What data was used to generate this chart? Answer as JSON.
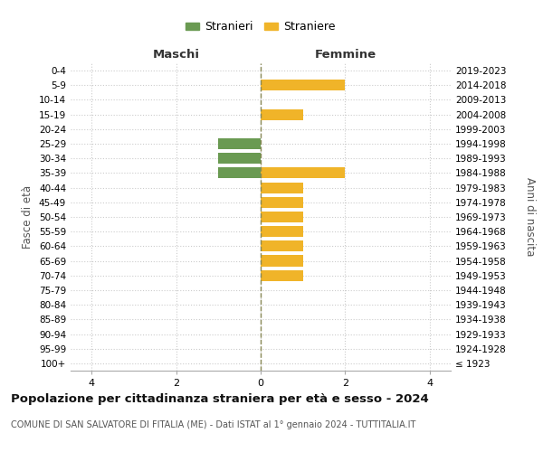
{
  "age_groups": [
    "100+",
    "95-99",
    "90-94",
    "85-89",
    "80-84",
    "75-79",
    "70-74",
    "65-69",
    "60-64",
    "55-59",
    "50-54",
    "45-49",
    "40-44",
    "35-39",
    "30-34",
    "25-29",
    "20-24",
    "15-19",
    "10-14",
    "5-9",
    "0-4"
  ],
  "birth_years": [
    "≤ 1923",
    "1924-1928",
    "1929-1933",
    "1934-1938",
    "1939-1943",
    "1944-1948",
    "1949-1953",
    "1954-1958",
    "1959-1963",
    "1964-1968",
    "1969-1973",
    "1974-1978",
    "1979-1983",
    "1984-1988",
    "1989-1993",
    "1994-1998",
    "1999-2003",
    "2004-2008",
    "2009-2013",
    "2014-2018",
    "2019-2023"
  ],
  "males": [
    0,
    0,
    0,
    0,
    0,
    0,
    0,
    0,
    0,
    0,
    0,
    0,
    0,
    1,
    1,
    1,
    0,
    0,
    0,
    0,
    0
  ],
  "females": [
    0,
    0,
    0,
    0,
    0,
    0,
    1,
    1,
    1,
    1,
    1,
    1,
    1,
    2,
    0,
    0,
    0,
    1,
    0,
    2,
    0
  ],
  "male_color": "#6a9a52",
  "female_color": "#f0b429",
  "background_color": "#ffffff",
  "grid_color": "#cccccc",
  "title": "Popolazione per cittadinanza straniera per età e sesso - 2024",
  "subtitle": "COMUNE DI SAN SALVATORE DI FITALIA (ME) - Dati ISTAT al 1° gennaio 2024 - TUTTITALIA.IT",
  "xlabel_left": "Maschi",
  "xlabel_right": "Femmine",
  "ylabel_left": "Fasce di età",
  "ylabel_right": "Anni di nascita",
  "legend_male": "Stranieri",
  "legend_female": "Straniere",
  "xlim": 4.5,
  "xticks": [
    -4,
    -2,
    0,
    2,
    4
  ],
  "xticklabels": [
    "4",
    "2",
    "0",
    "2",
    "4"
  ],
  "center_line_color": "#888855"
}
